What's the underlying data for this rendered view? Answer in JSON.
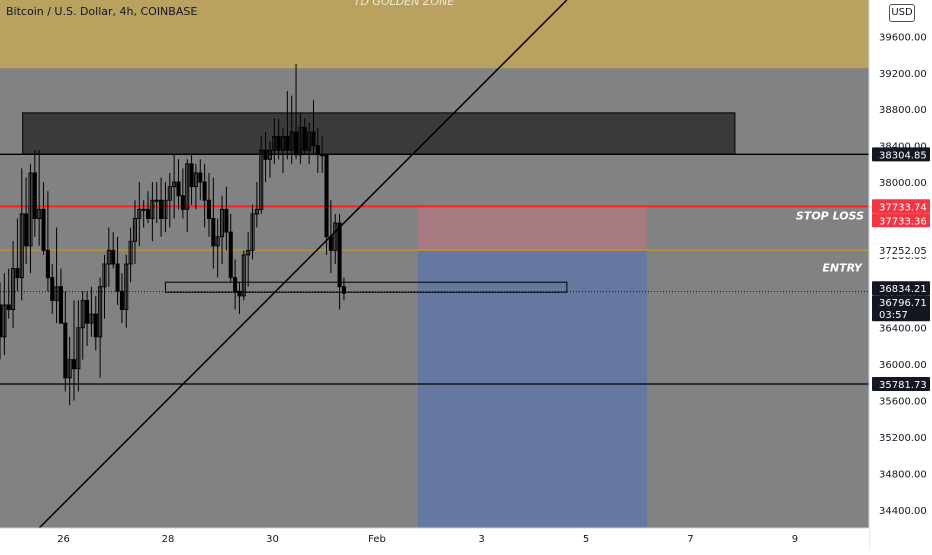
{
  "header": {
    "title": "Bitcoin / U.S. Dollar, 4h, COINBASE",
    "currency": "USD",
    "golden_zone_label": "TD GOLDEN ZONE",
    "stop_loss_label": "STOP LOSS",
    "entry_label": "ENTRY"
  },
  "colors": {
    "background": "#808284",
    "golden_zone": "#b9a260",
    "supply_zone": "#3a3b3d",
    "stop_zone": "#a67a80",
    "target_zone": "#6478a0",
    "stop_line": "#ff1f1f",
    "entry_line": "#c8961e",
    "candle": "#000000",
    "axis_bg": "#ffffff",
    "badge_dark": "#131722",
    "badge_red": "#f23645",
    "badge_orange": "#d89a1f"
  },
  "chart_data": {
    "type": "candlestick",
    "symbol": "Bitcoin / U.S. Dollar",
    "interval": "4h",
    "exchange": "COINBASE",
    "ylim": [
      34200,
      40000
    ],
    "yticks": [
      34400,
      34800,
      35200,
      35600,
      36000,
      36400,
      36800,
      37200,
      37600,
      38000,
      38400,
      38800,
      39200,
      39600
    ],
    "xticks": [
      {
        "label": "26",
        "x": 0.5
      },
      {
        "label": "28",
        "x": 12.5
      },
      {
        "label": "30",
        "x": 24.5
      },
      {
        "label": "Feb",
        "x": 36.5
      },
      {
        "label": "3",
        "x": 48.5
      },
      {
        "label": "5",
        "x": 60.5
      },
      {
        "label": "7",
        "x": 72.5
      },
      {
        "label": "9",
        "x": 84.5
      }
    ],
    "xlim": [
      -6.8,
      93
    ],
    "candles": [
      [
        36650,
        36900,
        36050,
        36300
      ],
      [
        36300,
        37000,
        36100,
        36650
      ],
      [
        36650,
        37050,
        36500,
        36600
      ],
      [
        36600,
        37350,
        36400,
        37050
      ],
      [
        37050,
        37600,
        36800,
        36950
      ],
      [
        36950,
        38150,
        36700,
        37650
      ],
      [
        37650,
        38050,
        37100,
        37300
      ],
      [
        37300,
        38200,
        37000,
        38100
      ],
      [
        38100,
        38350,
        37400,
        37600
      ],
      [
        37600,
        38350,
        37300,
        37700
      ],
      [
        37700,
        38000,
        37200,
        37250
      ],
      [
        37250,
        37900,
        36800,
        36950
      ],
      [
        36950,
        37100,
        36550,
        36700
      ],
      [
        36700,
        37500,
        36450,
        36850
      ],
      [
        36850,
        37050,
        36450,
        36450
      ],
      [
        36450,
        36800,
        35700,
        35850
      ],
      [
        35850,
        36300,
        35550,
        36050
      ],
      [
        36050,
        36700,
        35600,
        35950
      ],
      [
        35950,
        36700,
        35700,
        36400
      ],
      [
        36400,
        36800,
        36050,
        36700
      ],
      [
        36700,
        36800,
        36200,
        36450
      ],
      [
        36450,
        36850,
        36300,
        36550
      ],
      [
        36550,
        36750,
        36150,
        36300
      ],
      [
        36300,
        36950,
        35850,
        36850
      ],
      [
        36850,
        37200,
        36500,
        37100
      ],
      [
        37100,
        37500,
        36850,
        37250
      ],
      [
        37250,
        37450,
        37050,
        37100
      ],
      [
        37100,
        37400,
        36650,
        36800
      ],
      [
        36800,
        37000,
        36450,
        36600
      ],
      [
        36600,
        37200,
        36400,
        37100
      ],
      [
        37100,
        37500,
        36900,
        37350
      ],
      [
        37350,
        37800,
        37100,
        37600
      ],
      [
        37600,
        38000,
        37300,
        37700
      ],
      [
        37700,
        37800,
        37500,
        37700
      ],
      [
        37700,
        37900,
        37550,
        37600
      ],
      [
        37600,
        38000,
        37350,
        37800
      ],
      [
        37800,
        38000,
        37550,
        37800
      ],
      [
        37800,
        38050,
        37400,
        37600
      ],
      [
        37600,
        38000,
        37450,
        37800
      ],
      [
        37800,
        38100,
        37500,
        37950
      ],
      [
        37950,
        38300,
        37600,
        38000
      ],
      [
        38000,
        38250,
        37700,
        37850
      ],
      [
        37850,
        38150,
        37600,
        37700
      ],
      [
        37700,
        38250,
        37450,
        38200
      ],
      [
        38200,
        38300,
        37750,
        37950
      ],
      [
        37950,
        38200,
        37700,
        38100
      ],
      [
        38100,
        38250,
        37800,
        38000
      ],
      [
        38000,
        38200,
        37500,
        37800
      ],
      [
        37800,
        38100,
        37400,
        37600
      ],
      [
        37600,
        38050,
        37050,
        37300
      ],
      [
        37300,
        37600,
        36950,
        37400
      ],
      [
        37400,
        37850,
        37100,
        37700
      ],
      [
        37700,
        37950,
        37250,
        37450
      ],
      [
        37450,
        37650,
        36900,
        36950
      ],
      [
        36950,
        37150,
        36600,
        36800
      ],
      [
        36800,
        36900,
        36550,
        36750
      ],
      [
        36750,
        37250,
        36700,
        37200
      ],
      [
        37200,
        37450,
        36850,
        37250
      ],
      [
        37250,
        37750,
        37150,
        37650
      ],
      [
        37650,
        38000,
        37500,
        37700
      ],
      [
        37700,
        38500,
        37650,
        38350
      ],
      [
        38350,
        38550,
        38000,
        38250
      ],
      [
        38250,
        38450,
        38050,
        38350
      ],
      [
        38350,
        38700,
        38200,
        38500
      ],
      [
        38500,
        38700,
        38250,
        38350
      ],
      [
        38350,
        38600,
        38100,
        38500
      ],
      [
        38500,
        39000,
        38250,
        38350
      ],
      [
        38350,
        38950,
        38200,
        38550
      ],
      [
        38550,
        39300,
        38250,
        38300
      ],
      [
        38300,
        38750,
        38200,
        38600
      ],
      [
        38600,
        38700,
        38300,
        38350
      ],
      [
        38350,
        38650,
        38200,
        38550
      ],
      [
        38550,
        38900,
        38300,
        38400
      ],
      [
        38400,
        38600,
        38100,
        38300
      ],
      [
        38300,
        38500,
        38100,
        38300
      ],
      [
        38300,
        38300,
        37200,
        37400
      ],
      [
        37400,
        37800,
        37000,
        37250
      ],
      [
        37250,
        37650,
        37100,
        37550
      ],
      [
        37550,
        37650,
        36600,
        36850
      ],
      [
        36850,
        36950,
        36700,
        36780
      ]
    ],
    "candle_x_start": -6.8,
    "candle_x_step": 0.5,
    "horizontal_lines": [
      {
        "price": 38304.85,
        "label": "38304.85",
        "color": "#000000"
      },
      {
        "price": 37733.36,
        "label": "37733.36",
        "color": "#ff1f1f"
      },
      {
        "price": 37252.05,
        "label": "37252.05",
        "color": "#c8961e"
      },
      {
        "price": 35781.73,
        "label": "35781.73",
        "color": "#000000"
      },
      {
        "price": 36796.71,
        "label": "36796.71",
        "color": "#131722",
        "style": "dotted"
      }
    ],
    "price_badges": [
      {
        "price": 38304.85,
        "label": "38304.85",
        "kind": "dark"
      },
      {
        "price": 37733.74,
        "label": "37733.74",
        "kind": "red"
      },
      {
        "price": 37733.36,
        "label": "37733.36",
        "kind": "red"
      },
      {
        "price": 37252.05,
        "label": "37252.05",
        "kind": "orange"
      },
      {
        "price": 37252.05,
        "label": "37252.05",
        "kind": "plain"
      },
      {
        "price": 36834.21,
        "label": "36834.21",
        "kind": "dark"
      },
      {
        "price": 36796.71,
        "label": "36796.71",
        "kind": "dark",
        "sub": "03:57"
      },
      {
        "price": 35781.73,
        "label": "35781.73",
        "kind": "dark"
      }
    ],
    "zones": {
      "golden": {
        "price_from": 39250,
        "price_to": 40000
      },
      "supply": {
        "x_from": -4.2,
        "x_to": 77.6,
        "price_from": 38304.85,
        "price_to": 38760
      },
      "stop": {
        "x_from": 41.2,
        "x_to": 67.5,
        "price_from": 37252.05,
        "price_to": 37733.36
      },
      "target": {
        "x_from": 41.2,
        "x_to": 67.5,
        "price_from": 34200,
        "price_to": 37252.05
      },
      "entry_box": {
        "x_from": 12.2,
        "x_to": 58.3,
        "price_from": 36790,
        "price_to": 36900
      }
    },
    "trendline": {
      "x1": -2.3,
      "y1": 34200,
      "x2": 58.3,
      "y2": 40000
    }
  }
}
